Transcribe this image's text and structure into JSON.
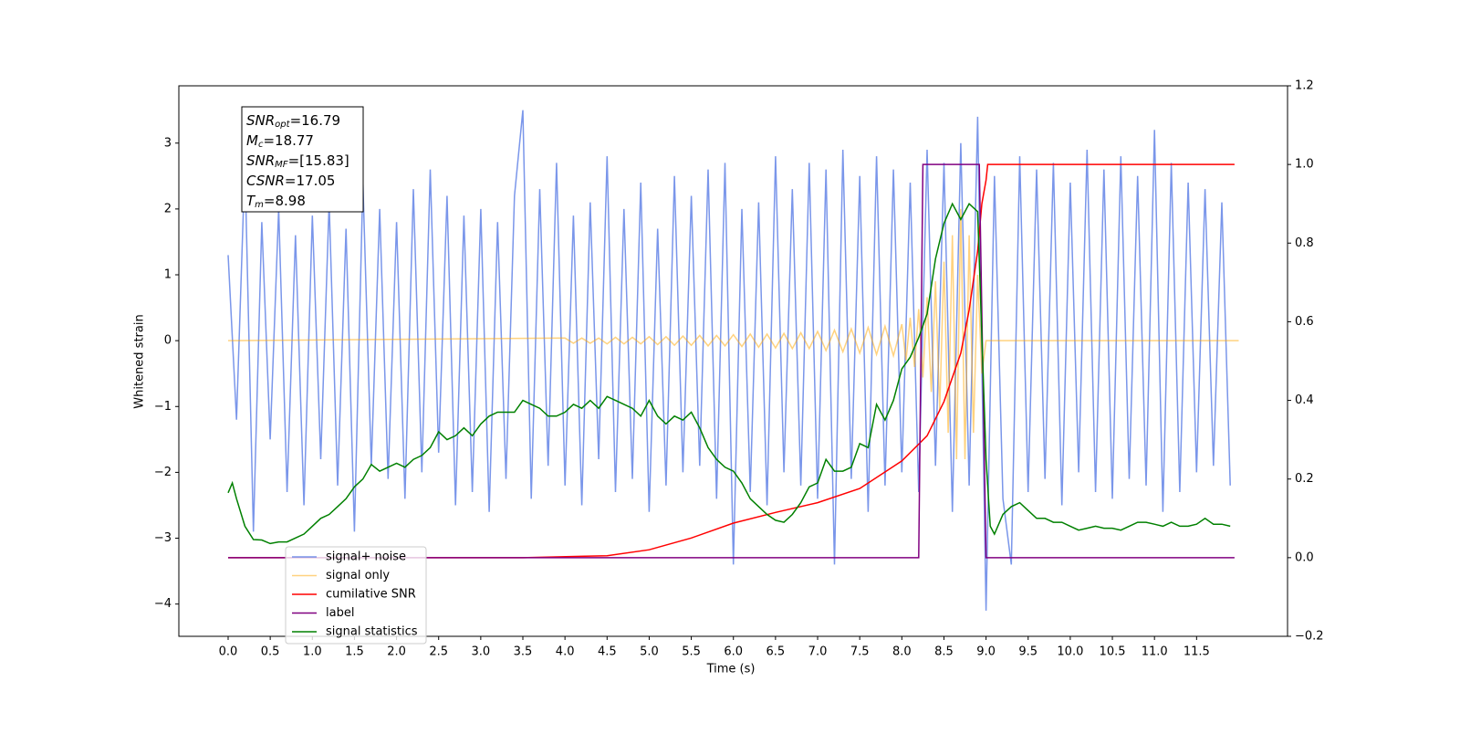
{
  "chart_data": {
    "type": "line",
    "xlabel": "Time (s)",
    "ylabel": "Whitened strain",
    "xlim": [
      -0.585,
      12.58
    ],
    "ylim": [
      -4.49,
      3.87
    ],
    "y2lim": [
      -0.2,
      1.2
    ],
    "xticks": [
      {
        "value": 0,
        "label": "0.0"
      },
      0.5,
      {
        "value": 1,
        "label": "1.0"
      },
      1.5,
      {
        "value": 2,
        "label": "2.0"
      },
      2.5,
      {
        "value": 3,
        "label": "3.0"
      },
      3.5,
      {
        "value": 4,
        "label": "4.0"
      },
      4.5,
      {
        "value": 5,
        "label": "5.0"
      },
      5.5,
      {
        "value": 6,
        "label": "6.0"
      },
      6.5,
      {
        "value": 7,
        "label": "7.0"
      },
      7.5,
      {
        "value": 8,
        "label": "8.0"
      },
      8.5,
      {
        "value": 9,
        "label": "9.0"
      },
      9.5,
      {
        "value": 10,
        "label": "10.0"
      },
      10.5,
      {
        "value": 11,
        "label": "11.0"
      },
      11.5
    ],
    "yticks": [
      {
        "value": -4,
        "label": "−4"
      },
      {
        "value": -3,
        "label": "−3"
      },
      {
        "value": -2,
        "label": "−2"
      },
      {
        "value": -1,
        "label": "−1"
      },
      0,
      1,
      2,
      3
    ],
    "y2ticks": [
      {
        "value": -0.2,
        "label": "−0.2"
      },
      {
        "value": 0,
        "label": "0.0"
      },
      0.2,
      0.4,
      0.6,
      0.8,
      {
        "value": 1,
        "label": "1.0"
      },
      1.2
    ],
    "annotation": [
      {
        "symbol": "SNR",
        "subscript": "opt",
        "text": "=16.79"
      },
      {
        "symbol": "M",
        "subscript": "c",
        "text": "=18.77"
      },
      {
        "symbol": "SNR",
        "subscript": "MF",
        "text": "=[15.83]"
      },
      {
        "symbol": "CSNR",
        "subscript": "",
        "text": "=17.05"
      },
      {
        "symbol": "T",
        "subscript": "m",
        "text": "=8.98"
      }
    ],
    "series": [
      {
        "name": "signal+ noise",
        "color": "#4169e1",
        "opacity": 0.7,
        "x": [
          0,
          0.1,
          0.2,
          0.3,
          0.4,
          0.5,
          0.6,
          0.7,
          0.8,
          0.9,
          1,
          1.1,
          1.2,
          1.3,
          1.4,
          1.5,
          1.6,
          1.7,
          1.8,
          1.9,
          2,
          2.1,
          2.2,
          2.3,
          2.4,
          2.5,
          2.6,
          2.7,
          2.8,
          2.9,
          3,
          3.1,
          3.2,
          3.3,
          3.4,
          3.5,
          3.6,
          3.7,
          3.8,
          3.9,
          4,
          4.1,
          4.2,
          4.3,
          4.4,
          4.5,
          4.6,
          4.7,
          4.8,
          4.9,
          5,
          5.1,
          5.2,
          5.3,
          5.4,
          5.5,
          5.6,
          5.7,
          5.8,
          5.9,
          6,
          6.1,
          6.2,
          6.3,
          6.4,
          6.5,
          6.6,
          6.7,
          6.8,
          6.9,
          7,
          7.1,
          7.2,
          7.3,
          7.4,
          7.5,
          7.6,
          7.7,
          7.8,
          7.9,
          8,
          8.1,
          8.2,
          8.3,
          8.4,
          8.5,
          8.6,
          8.7,
          8.8,
          8.9,
          9,
          9.1,
          9.2,
          9.3,
          9.4,
          9.5,
          9.6,
          9.7,
          9.8,
          9.9,
          10,
          10.1,
          10.2,
          10.3,
          10.4,
          10.5,
          10.6,
          10.7,
          10.8,
          10.9,
          11,
          11.1,
          11.2,
          11.3,
          11.4,
          11.5,
          11.6,
          11.7,
          11.8,
          11.9
        ],
        "values": [
          1.3,
          -1.2,
          2.7,
          -2.9,
          1.8,
          -1.5,
          2.0,
          -2.3,
          1.6,
          -2.5,
          1.9,
          -1.8,
          2.1,
          -2.2,
          1.7,
          -2.9,
          2.4,
          -1.9,
          2.0,
          -2.1,
          1.8,
          -2.4,
          2.3,
          -2.0,
          2.6,
          -1.7,
          2.2,
          -2.5,
          1.9,
          -2.3,
          2.0,
          -2.6,
          1.8,
          -2.1,
          2.2,
          3.5,
          -2.4,
          2.3,
          -1.9,
          2.7,
          -2.2,
          1.9,
          -2.5,
          2.1,
          -1.8,
          2.8,
          -2.3,
          2.0,
          -2.1,
          2.4,
          -2.6,
          1.7,
          -2.2,
          2.5,
          -2.0,
          2.2,
          -1.9,
          2.6,
          -2.4,
          2.7,
          -3.4,
          2.0,
          -2.3,
          2.1,
          -2.5,
          2.8,
          -2.0,
          2.3,
          -2.2,
          2.7,
          -2.4,
          2.6,
          -3.4,
          2.9,
          -2.1,
          2.5,
          -2.6,
          2.8,
          -2.2,
          2.6,
          -2.0,
          2.4,
          -2.3,
          2.9,
          -1.9,
          2.7,
          -2.6,
          3.0,
          -2.2,
          3.4,
          -4.1,
          2.5,
          -2.4,
          -3.4,
          2.8,
          -2.3,
          2.6,
          -2.1,
          2.7,
          -2.5,
          2.4,
          -2.0,
          2.9,
          -2.3,
          2.6,
          -2.4,
          2.8,
          -2.1,
          2.5,
          -2.2,
          3.2,
          -2.6,
          2.7,
          -2.3,
          2.4,
          -2.0,
          2.3,
          -1.9,
          2.1,
          -2.2
        ]
      },
      {
        "name": "signal only",
        "color": "#ffa500",
        "opacity": 0.5,
        "x": [
          0,
          4,
          4.1,
          4.2,
          4.3,
          4.4,
          4.5,
          4.6,
          4.7,
          4.8,
          4.9,
          5,
          5.1,
          5.2,
          5.3,
          5.4,
          5.5,
          5.6,
          5.7,
          5.8,
          5.9,
          6,
          6.1,
          6.2,
          6.3,
          6.4,
          6.5,
          6.6,
          6.7,
          6.8,
          6.9,
          7,
          7.1,
          7.2,
          7.3,
          7.4,
          7.5,
          7.6,
          7.7,
          7.8,
          7.9,
          8,
          8.05,
          8.1,
          8.15,
          8.2,
          8.25,
          8.3,
          8.35,
          8.4,
          8.45,
          8.5,
          8.55,
          8.6,
          8.65,
          8.7,
          8.75,
          8.8,
          8.85,
          8.9,
          8.95,
          9,
          9.05,
          12
        ],
        "values": [
          0,
          0.04,
          -0.04,
          0.04,
          -0.04,
          0.04,
          -0.05,
          0.05,
          -0.05,
          0.05,
          -0.05,
          0.06,
          -0.06,
          0.06,
          -0.07,
          0.07,
          -0.07,
          0.08,
          -0.08,
          0.08,
          -0.08,
          0.09,
          -0.09,
          0.1,
          -0.1,
          0.1,
          -0.11,
          0.11,
          -0.12,
          0.12,
          -0.12,
          0.14,
          -0.15,
          0.16,
          -0.17,
          0.18,
          -0.19,
          0.2,
          -0.21,
          0.22,
          -0.23,
          0.25,
          -0.3,
          0.35,
          -0.4,
          0.48,
          -0.56,
          0.66,
          -0.78,
          0.9,
          -1.05,
          1.2,
          -1.4,
          1.6,
          -1.8,
          2.0,
          -1.8,
          1.6,
          -1.4,
          1.0,
          -0.5,
          0,
          0,
          0
        ]
      },
      {
        "name": "cumilative SNR",
        "color": "#ff0000",
        "axis": "y2",
        "x": [
          0,
          3.5,
          4.5,
          5.0,
          5.5,
          6.0,
          6.5,
          7.0,
          7.5,
          8.0,
          8.3,
          8.5,
          8.7,
          8.8,
          8.9,
          8.95,
          9.0,
          9.02,
          11.95
        ],
        "values": [
          0,
          0,
          0.005,
          0.02,
          0.05,
          0.088,
          0.115,
          0.14,
          0.176,
          0.246,
          0.31,
          0.397,
          0.52,
          0.63,
          0.78,
          0.9,
          0.96,
          1.0,
          1.0
        ]
      },
      {
        "name": "label",
        "color": "#800080",
        "axis": "y2",
        "x": [
          0,
          8.2,
          8.25,
          8.92,
          9.0,
          11.95
        ],
        "values": [
          0,
          0,
          1,
          1,
          0,
          0
        ]
      },
      {
        "name": "signal statistics",
        "color": "#008000",
        "axis": "y2",
        "x": [
          0,
          0.05,
          0.1,
          0.2,
          0.3,
          0.4,
          0.5,
          0.6,
          0.7,
          0.8,
          0.9,
          1,
          1.1,
          1.2,
          1.3,
          1.4,
          1.5,
          1.6,
          1.7,
          1.8,
          1.9,
          2,
          2.1,
          2.2,
          2.3,
          2.4,
          2.5,
          2.6,
          2.7,
          2.8,
          2.9,
          3,
          3.1,
          3.2,
          3.3,
          3.4,
          3.5,
          3.6,
          3.7,
          3.8,
          3.9,
          4,
          4.1,
          4.2,
          4.3,
          4.4,
          4.5,
          4.6,
          4.7,
          4.8,
          4.9,
          5,
          5.1,
          5.2,
          5.3,
          5.4,
          5.5,
          5.6,
          5.7,
          5.8,
          5.9,
          6,
          6.1,
          6.2,
          6.3,
          6.4,
          6.5,
          6.6,
          6.7,
          6.8,
          6.9,
          7,
          7.1,
          7.2,
          7.3,
          7.4,
          7.5,
          7.6,
          7.7,
          7.8,
          7.9,
          8,
          8.1,
          8.2,
          8.3,
          8.4,
          8.5,
          8.6,
          8.7,
          8.8,
          8.9,
          9,
          9.05,
          9.1,
          9.2,
          9.3,
          9.4,
          9.5,
          9.6,
          9.7,
          9.8,
          9.9,
          10,
          10.1,
          10.2,
          10.3,
          10.4,
          10.5,
          10.6,
          10.7,
          10.8,
          10.9,
          11,
          11.1,
          11.2,
          11.3,
          11.4,
          11.5,
          11.6,
          11.7,
          11.8,
          11.9
        ],
        "values": [
          0.165,
          0.19,
          0.15,
          0.08,
          0.046,
          0.045,
          0.036,
          0.04,
          0.04,
          0.05,
          0.06,
          0.08,
          0.1,
          0.11,
          0.13,
          0.15,
          0.18,
          0.2,
          0.237,
          0.22,
          0.23,
          0.24,
          0.23,
          0.25,
          0.26,
          0.28,
          0.32,
          0.3,
          0.31,
          0.33,
          0.31,
          0.34,
          0.36,
          0.37,
          0.37,
          0.37,
          0.4,
          0.39,
          0.38,
          0.36,
          0.36,
          0.37,
          0.39,
          0.38,
          0.4,
          0.38,
          0.41,
          0.4,
          0.39,
          0.38,
          0.36,
          0.4,
          0.36,
          0.34,
          0.36,
          0.35,
          0.37,
          0.33,
          0.28,
          0.25,
          0.23,
          0.22,
          0.19,
          0.15,
          0.13,
          0.11,
          0.095,
          0.09,
          0.11,
          0.14,
          0.18,
          0.19,
          0.25,
          0.22,
          0.22,
          0.23,
          0.29,
          0.28,
          0.39,
          0.35,
          0.4,
          0.48,
          0.51,
          0.56,
          0.62,
          0.76,
          0.85,
          0.9,
          0.86,
          0.9,
          0.88,
          0.25,
          0.08,
          0.06,
          0.11,
          0.13,
          0.14,
          0.12,
          0.1,
          0.1,
          0.09,
          0.09,
          0.08,
          0.07,
          0.075,
          0.08,
          0.075,
          0.075,
          0.07,
          0.08,
          0.09,
          0.09,
          0.085,
          0.08,
          0.09,
          0.08,
          0.08,
          0.085,
          0.1,
          0.085,
          0.085,
          0.08
        ]
      }
    ]
  }
}
